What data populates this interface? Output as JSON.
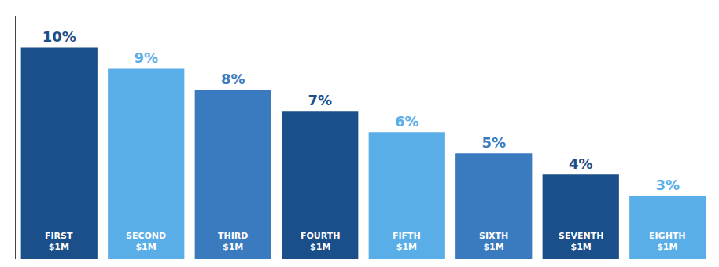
{
  "chart_data": {
    "type": "bar",
    "categories": [
      "FIRST\n$1M",
      "SECOND\n$1M",
      "THIRD\n$1M",
      "FOURTH\n$1M",
      "FIFTH\n$1M",
      "SIXTH\n$1M",
      "SEVENTH\n$1M",
      "EIGHTH\n$1M"
    ],
    "values": [
      10,
      9,
      8,
      7,
      6,
      5,
      4,
      3
    ],
    "value_labels": [
      "10%",
      "9%",
      "8%",
      "7%",
      "6%",
      "5%",
      "4%",
      "3%"
    ],
    "colors": [
      "#1a4f8a",
      "#5aaee8",
      "#3a7abf",
      "#1a4f8a",
      "#5aaee8",
      "#3a7abf",
      "#1a4f8a",
      "#5aaee8"
    ],
    "ylim": [
      0,
      11.5
    ],
    "data_labels": true,
    "tick_labels": false,
    "grid": false
  }
}
